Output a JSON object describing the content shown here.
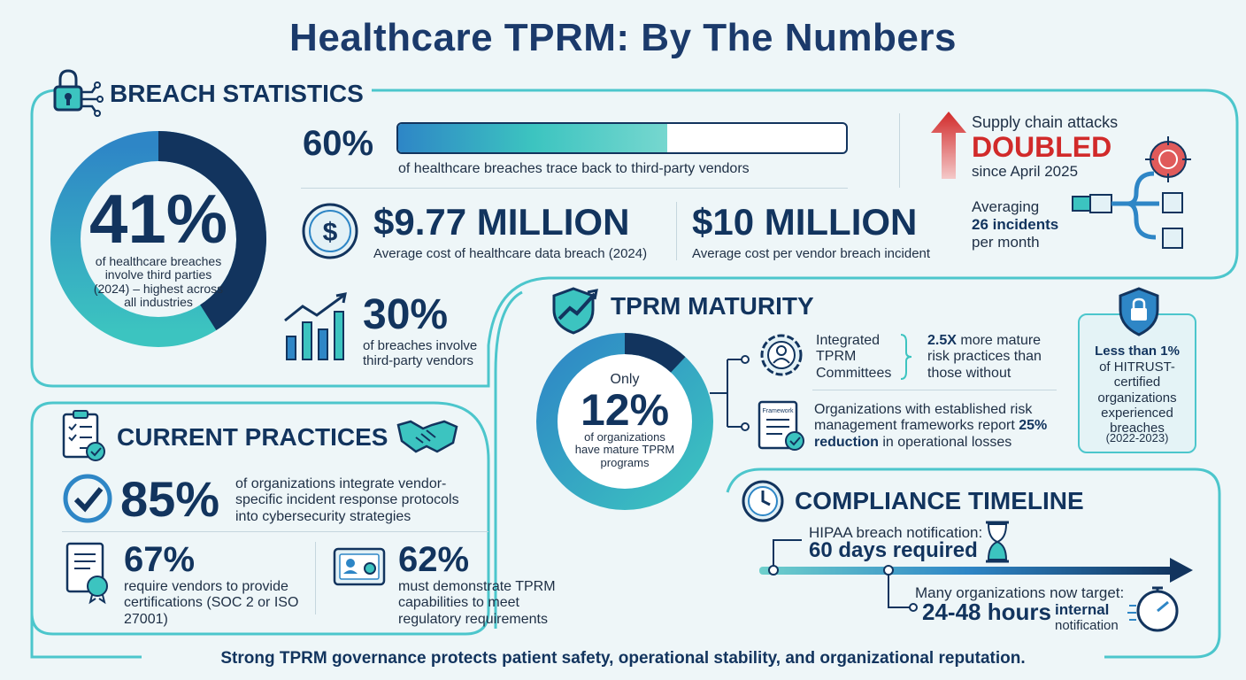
{
  "title": "Healthcare TPRM: By The Numbers",
  "colors": {
    "navy": "#12345e",
    "teal": "#3cc4c0",
    "blue": "#2e86c6",
    "red": "#d12a2a",
    "border": "#4cc6cc"
  },
  "breach": {
    "heading": "BREACH STATISTICS",
    "ring_pct": "41%",
    "ring_fraction": 0.41,
    "ring_text": "of healthcare breaches involve third parties (2024) – highest across all industries",
    "bar_pct": "60%",
    "bar_fraction": 0.6,
    "bar_text": "of healthcare breaches trace back to third-party vendors",
    "cost1_value": "$9.77 MILLION",
    "cost1_text": "Average cost of healthcare data breach (2024)",
    "cost2_value": "$10 MILLION",
    "cost2_text": "Average cost per vendor breach incident",
    "pct30": "30%",
    "pct30_text": "of breaches involve third-party vendors",
    "supply_line1": "Supply chain attacks",
    "supply_doubled": "DOUBLED",
    "supply_since": "since April 2025",
    "avg_line1": "Averaging",
    "avg_bold": "26 incidents",
    "avg_line3": "per month"
  },
  "maturity": {
    "heading": "TPRM MATURITY",
    "only": "Only",
    "pct": "12%",
    "fraction": 0.12,
    "ring_text": "of organizations have mature TPRM programs",
    "item1": "Integrated TPRM Committees",
    "item1_bold": "2.5X",
    "item1_result": "more mature risk practices than those without",
    "item2_pre": "Organizations with established risk management frameworks report",
    "item2_bold": "25% reduction",
    "item2_post": "in operational losses",
    "doc_label": "Framework",
    "hitrust_bold": "Less than 1%",
    "hitrust_text": "of HITRUST-certified organizations experienced breaches",
    "hitrust_years": "(2022-2023)"
  },
  "practices": {
    "heading": "CURRENT PRACTICES",
    "pct85": "85%",
    "pct85_text": "of organizations integrate vendor-specific incident response protocols into cybersecurity strategies",
    "pct67": "67%",
    "pct67_text": "require vendors to provide certifications (SOC 2 or ISO 27001)",
    "pct62": "62%",
    "pct62_text": "must demonstrate TPRM capabilities to meet regulatory requirements"
  },
  "timeline": {
    "heading": "COMPLIANCE TIMELINE",
    "hipaa_label": "HIPAA breach notification:",
    "hipaa_value": "60 days required",
    "target_label": "Many organizations now target:",
    "target_value": "24-48 hours",
    "target_suffix1": "internal",
    "target_suffix2": "notification"
  },
  "footer": "Strong TPRM governance protects patient safety, operational stability, and organizational reputation."
}
